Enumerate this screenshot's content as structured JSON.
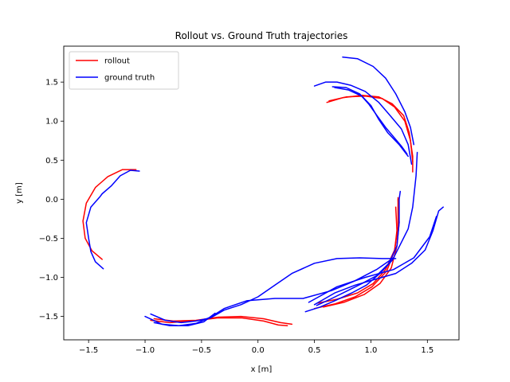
{
  "chart_data": {
    "type": "line",
    "title": "Rollout vs. Ground Truth trajectories",
    "xlabel": "x [m]",
    "ylabel": "y [m]",
    "xlim": [
      -1.72,
      1.78
    ],
    "ylim": [
      -1.8,
      1.96
    ],
    "xticks": [
      -1.5,
      -1.0,
      -0.5,
      0.0,
      0.5,
      1.0,
      1.5
    ],
    "xtick_labels": [
      "−1.5",
      "−1.0",
      "−0.5",
      "0.0",
      "0.5",
      "1.0",
      "1.5"
    ],
    "yticks": [
      -1.5,
      -1.0,
      -0.5,
      0.0,
      0.5,
      1.0,
      1.5
    ],
    "ytick_labels": [
      "−1.5",
      "−1.0",
      "−0.5",
      "0.0",
      "0.5",
      "1.0",
      "1.5"
    ],
    "grid": false,
    "legend": {
      "position": "upper-left",
      "entries": [
        {
          "name": "rollout",
          "color": "#ff0000"
        },
        {
          "name": "ground truth",
          "color": "#0000ff"
        }
      ]
    },
    "series": [
      {
        "name": "rollout",
        "color": "#ff0000",
        "segments": [
          [
            [
              -1.38,
              -0.77
            ],
            [
              -1.47,
              -0.66
            ],
            [
              -1.53,
              -0.5
            ],
            [
              -1.55,
              -0.28
            ],
            [
              -1.52,
              -0.05
            ],
            [
              -1.44,
              0.15
            ],
            [
              -1.33,
              0.29
            ],
            [
              -1.2,
              0.38
            ],
            [
              -1.08,
              0.38
            ]
          ],
          [
            [
              0.61,
              1.24
            ],
            [
              0.75,
              1.3
            ],
            [
              0.92,
              1.33
            ],
            [
              1.07,
              1.31
            ],
            [
              1.19,
              1.22
            ],
            [
              1.29,
              1.07
            ],
            [
              1.34,
              0.85
            ],
            [
              1.37,
              0.55
            ],
            [
              1.37,
              0.35
            ]
          ],
          [
            [
              0.63,
              1.26
            ],
            [
              0.78,
              1.31
            ],
            [
              0.95,
              1.32
            ],
            [
              1.1,
              1.29
            ],
            [
              1.21,
              1.18
            ],
            [
              1.3,
              1.0
            ],
            [
              1.35,
              0.75
            ],
            [
              1.37,
              0.48
            ]
          ],
          [
            [
              0.53,
              -1.33
            ],
            [
              0.7,
              -1.28
            ],
            [
              0.88,
              -1.2
            ],
            [
              1.02,
              -1.08
            ],
            [
              1.13,
              -0.9
            ],
            [
              1.21,
              -0.65
            ],
            [
              1.24,
              -0.35
            ],
            [
              1.24,
              0.0
            ]
          ],
          [
            [
              0.58,
              -1.38
            ],
            [
              0.76,
              -1.32
            ],
            [
              0.94,
              -1.22
            ],
            [
              1.08,
              -1.08
            ],
            [
              1.18,
              -0.88
            ],
            [
              1.23,
              -0.6
            ],
            [
              1.25,
              -0.3
            ],
            [
              1.24,
              0.02
            ]
          ],
          [
            [
              0.5,
              -1.4
            ],
            [
              0.68,
              -1.34
            ],
            [
              0.86,
              -1.25
            ],
            [
              1.01,
              -1.12
            ],
            [
              1.14,
              -0.92
            ],
            [
              1.21,
              -0.66
            ],
            [
              1.23,
              -0.4
            ],
            [
              1.22,
              -0.1
            ]
          ],
          [
            [
              -0.92,
              -1.53
            ],
            [
              -0.75,
              -1.56
            ],
            [
              -0.55,
              -1.55
            ],
            [
              -0.35,
              -1.51
            ],
            [
              -0.15,
              -1.5
            ],
            [
              0.05,
              -1.53
            ],
            [
              0.2,
              -1.58
            ],
            [
              0.3,
              -1.6
            ]
          ],
          [
            [
              -0.95,
              -1.55
            ],
            [
              -0.78,
              -1.58
            ],
            [
              -0.58,
              -1.56
            ],
            [
              -0.36,
              -1.52
            ],
            [
              -0.14,
              -1.52
            ],
            [
              0.05,
              -1.56
            ],
            [
              0.18,
              -1.61
            ],
            [
              0.26,
              -1.62
            ]
          ]
        ]
      },
      {
        "name": "ground truth",
        "color": "#0000ff",
        "segments": [
          [
            [
              -1.37,
              -0.89
            ],
            [
              -1.44,
              -0.8
            ],
            [
              -1.48,
              -0.67
            ],
            [
              -1.5,
              -0.5
            ],
            [
              -1.52,
              -0.3
            ],
            [
              -1.48,
              -0.1
            ],
            [
              -1.4,
              0.03
            ],
            [
              -1.38,
              0.07
            ],
            [
              -1.3,
              0.17
            ],
            [
              -1.22,
              0.3
            ],
            [
              -1.13,
              0.37
            ],
            [
              -1.05,
              0.36
            ]
          ],
          [
            [
              0.75,
              1.82
            ],
            [
              0.88,
              1.8
            ],
            [
              1.02,
              1.7
            ],
            [
              1.13,
              1.55
            ],
            [
              1.22,
              1.35
            ],
            [
              1.3,
              1.12
            ],
            [
              1.35,
              0.92
            ],
            [
              1.38,
              0.7
            ]
          ],
          [
            [
              0.5,
              1.45
            ],
            [
              0.6,
              1.5
            ],
            [
              0.7,
              1.5
            ],
            [
              0.82,
              1.46
            ],
            [
              0.95,
              1.38
            ],
            [
              1.07,
              1.24
            ],
            [
              1.17,
              1.07
            ],
            [
              1.27,
              0.9
            ],
            [
              1.33,
              0.7
            ],
            [
              1.36,
              0.45
            ]
          ],
          [
            [
              0.66,
              1.44
            ],
            [
              0.78,
              1.43
            ],
            [
              0.9,
              1.35
            ],
            [
              0.98,
              1.22
            ],
            [
              1.05,
              1.08
            ],
            [
              1.13,
              0.92
            ],
            [
              1.2,
              0.8
            ],
            [
              1.27,
              0.68
            ],
            [
              1.32,
              0.58
            ]
          ],
          [
            [
              0.68,
              1.43
            ],
            [
              0.8,
              1.4
            ],
            [
              0.92,
              1.32
            ],
            [
              1.0,
              1.2
            ],
            [
              1.07,
              1.02
            ],
            [
              1.15,
              0.85
            ],
            [
              1.25,
              0.7
            ],
            [
              1.33,
              0.55
            ]
          ],
          [
            [
              0.42,
              -1.44
            ],
            [
              0.55,
              -1.38
            ],
            [
              0.68,
              -1.3
            ],
            [
              0.83,
              -1.2
            ],
            [
              0.96,
              -1.1
            ],
            [
              1.08,
              -0.95
            ],
            [
              1.19,
              -0.78
            ],
            [
              1.26,
              -0.58
            ],
            [
              1.33,
              -0.38
            ],
            [
              1.37,
              -0.1
            ],
            [
              1.4,
              0.3
            ],
            [
              1.41,
              0.6
            ]
          ],
          [
            [
              0.52,
              -1.36
            ],
            [
              0.64,
              -1.28
            ],
            [
              0.78,
              -1.18
            ],
            [
              0.92,
              -1.08
            ],
            [
              1.05,
              -0.98
            ],
            [
              1.16,
              -0.82
            ],
            [
              1.23,
              -0.6
            ],
            [
              1.25,
              -0.3
            ],
            [
              1.25,
              0.0
            ],
            [
              1.26,
              0.1
            ]
          ],
          [
            [
              0.5,
              -1.35
            ],
            [
              0.68,
              -1.2
            ],
            [
              0.86,
              -1.1
            ],
            [
              1.05,
              -1.02
            ],
            [
              1.22,
              -0.95
            ],
            [
              1.36,
              -0.82
            ],
            [
              1.48,
              -0.65
            ],
            [
              1.55,
              -0.4
            ],
            [
              1.6,
              -0.15
            ],
            [
              1.64,
              -0.1
            ]
          ],
          [
            [
              0.45,
              -1.32
            ],
            [
              0.7,
              -1.12
            ],
            [
              0.95,
              -1.0
            ],
            [
              1.2,
              -0.9
            ],
            [
              1.38,
              -0.75
            ],
            [
              1.52,
              -0.48
            ],
            [
              1.58,
              -0.22
            ]
          ],
          [
            [
              -0.95,
              -1.47
            ],
            [
              -0.82,
              -1.55
            ],
            [
              -0.68,
              -1.58
            ],
            [
              -0.55,
              -1.56
            ],
            [
              -0.42,
              -1.52
            ],
            [
              -0.3,
              -1.42
            ],
            [
              -0.15,
              -1.35
            ],
            [
              0.0,
              -1.25
            ],
            [
              0.15,
              -1.1
            ],
            [
              0.3,
              -0.95
            ],
            [
              0.5,
              -0.82
            ],
            [
              0.7,
              -0.76
            ],
            [
              0.9,
              -0.75
            ],
            [
              1.1,
              -0.76
            ],
            [
              1.22,
              -0.76
            ]
          ],
          [
            [
              -1.0,
              -1.5
            ],
            [
              -0.85,
              -1.6
            ],
            [
              -0.7,
              -1.62
            ],
            [
              -0.55,
              -1.59
            ],
            [
              -0.42,
              -1.51
            ],
            [
              -0.3,
              -1.4
            ],
            [
              -0.1,
              -1.3
            ],
            [
              0.15,
              -1.27
            ],
            [
              0.4,
              -1.27
            ],
            [
              0.65,
              -1.17
            ],
            [
              0.85,
              -1.05
            ],
            [
              1.05,
              -0.9
            ],
            [
              1.2,
              -0.75
            ]
          ],
          [
            [
              -0.92,
              -1.58
            ],
            [
              -0.78,
              -1.62
            ],
            [
              -0.62,
              -1.62
            ],
            [
              -0.48,
              -1.57
            ],
            [
              -0.38,
              -1.46
            ]
          ]
        ]
      }
    ]
  }
}
